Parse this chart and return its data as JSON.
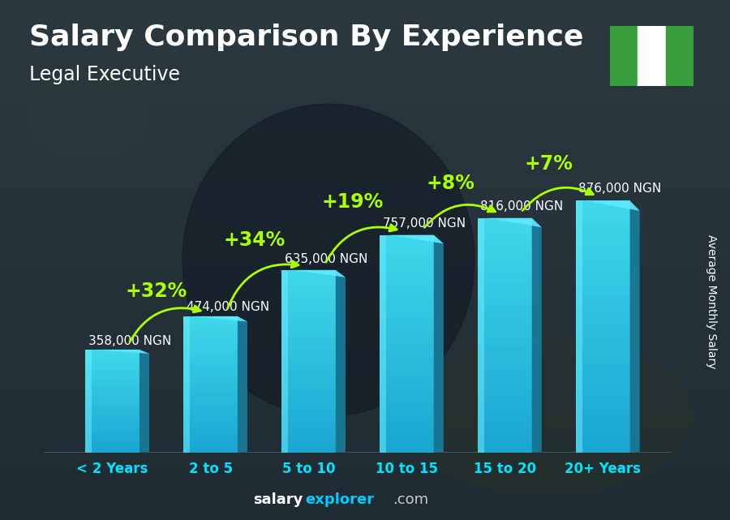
{
  "title": "Salary Comparison By Experience",
  "subtitle": "Legal Executive",
  "ylabel": "Average Monthly Salary",
  "categories": [
    "< 2 Years",
    "2 to 5",
    "5 to 10",
    "10 to 15",
    "15 to 20",
    "20+ Years"
  ],
  "values": [
    358000,
    474000,
    635000,
    757000,
    816000,
    876000
  ],
  "value_labels": [
    "358,000 NGN",
    "474,000 NGN",
    "635,000 NGN",
    "757,000 NGN",
    "816,000 NGN",
    "876,000 NGN"
  ],
  "pct_changes": [
    "+32%",
    "+34%",
    "+19%",
    "+8%",
    "+7%"
  ],
  "bar_face_color": "#29b6d8",
  "bar_left_color": "#4dd8f0",
  "bar_right_color": "#1a8aaa",
  "bar_top_color": "#5ae0f5",
  "background_dark": "#1a2530",
  "title_color": "#ffffff",
  "subtitle_color": "#ffffff",
  "value_label_color": "#ffffff",
  "pct_color": "#aaff00",
  "tick_label_color": "#00e5ff",
  "ylabel_color": "#ffffff",
  "footer_salary_color": "#ffffff",
  "footer_explorer_color": "#00ccff",
  "footer_com_color": "#cccccc",
  "ylim": [
    0,
    1050000
  ],
  "bar_width": 0.55,
  "title_fontsize": 26,
  "subtitle_fontsize": 17,
  "value_label_fontsize": 11,
  "pct_fontsize": 17,
  "tick_fontsize": 12,
  "ylabel_fontsize": 10,
  "footer_fontsize": 13,
  "nigeria_flag_green": "#3a9e3a",
  "nigeria_flag_white": "#ffffff"
}
